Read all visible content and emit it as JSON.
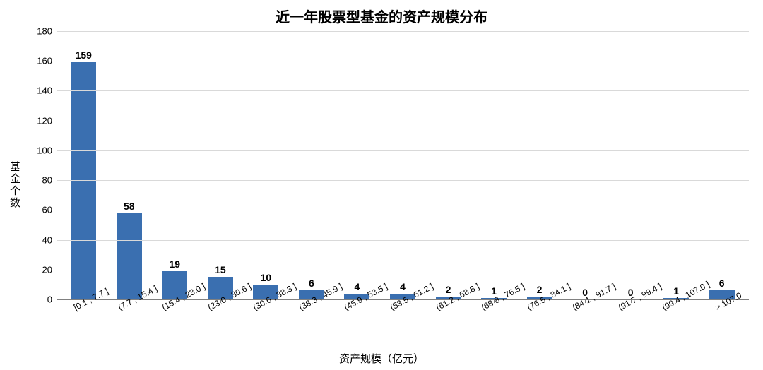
{
  "chart": {
    "type": "bar",
    "title": "近一年股票型基金的资产规模分布",
    "title_fontsize": 20,
    "title_fontweight": "bold",
    "ylabel": "基金个数",
    "xlabel": "资产规模（亿元）",
    "label_fontsize": 15,
    "tick_fontsize": 13,
    "value_label_fontsize": 14,
    "xtick_fontsize": 12,
    "xtick_rotation_deg": -28,
    "categories": [
      "[0.1 , 7.7 ]",
      "(7.7 , 15.4 ]",
      "(15.4 , 23.0 ]",
      "(23.0 , 30.6 ]",
      "(30.6 , 38.3 ]",
      "(38.3 , 45.9 ]",
      "(45.9 , 53.5 ]",
      "(53.5 , 61.2 ]",
      "(61.2 , 68.8 ]",
      "(68.8 , 76.5 ]",
      "(76.5 , 84.1 ]",
      "(84.1 , 91.7 ]",
      "(91.7 , 99.4 ]",
      "(99.4 , 107.0 ]",
      "> 107.0"
    ],
    "values": [
      159,
      58,
      19,
      15,
      10,
      6,
      4,
      4,
      2,
      1,
      2,
      0,
      0,
      1,
      6
    ],
    "bar_color": "#3a6fb0",
    "bar_width_ratio": 0.55,
    "ylim": [
      0,
      180
    ],
    "ytick_step": 20,
    "background_color": "#ffffff",
    "grid_color": "#d9d9d9",
    "axis_color": "#808080",
    "text_color": "#000000",
    "show_horizontal_grid": true
  }
}
